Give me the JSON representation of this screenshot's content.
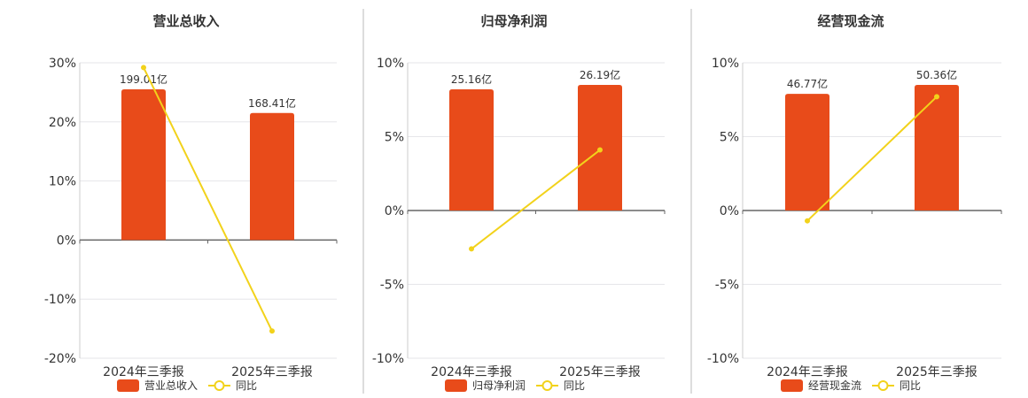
{
  "colors": {
    "bar": "#E84B1A",
    "line": "#F2D21B",
    "grid": "#E6E6EA",
    "axis": "#666666",
    "divider": "#BBBBBB"
  },
  "chart_data": [
    {
      "type": "bar",
      "title": "营业总收入",
      "categories": [
        "2024年三季报",
        "2025年三季报"
      ],
      "series": [
        {
          "name": "营业总收入",
          "type": "bar",
          "value_labels": [
            "199.01亿",
            "168.41亿"
          ],
          "values": [
            25.5,
            21.5
          ]
        },
        {
          "name": "同比",
          "type": "line",
          "values": [
            29.2,
            -15.4
          ]
        }
      ],
      "yticks": [
        "30%",
        "20%",
        "10%",
        "0%",
        "-10%",
        "-20%"
      ],
      "ylim": [
        -20,
        30
      ],
      "grid": true,
      "legend": "bottom"
    },
    {
      "type": "bar",
      "title": "归母净利润",
      "categories": [
        "2024年三季报",
        "2025年三季报"
      ],
      "series": [
        {
          "name": "归母净利润",
          "type": "bar",
          "value_labels": [
            "25.16亿",
            "26.19亿"
          ],
          "values": [
            8.2,
            8.5
          ]
        },
        {
          "name": "同比",
          "type": "line",
          "values": [
            -2.6,
            4.1
          ]
        }
      ],
      "yticks": [
        "10%",
        "5%",
        "0%",
        "-5%",
        "-10%"
      ],
      "ylim": [
        -10,
        10
      ],
      "grid": true,
      "legend": "bottom"
    },
    {
      "type": "bar",
      "title": "经营现金流",
      "categories": [
        "2024年三季报",
        "2025年三季报"
      ],
      "series": [
        {
          "name": "经营现金流",
          "type": "bar",
          "value_labels": [
            "46.77亿",
            "50.36亿"
          ],
          "values": [
            7.9,
            8.5
          ]
        },
        {
          "name": "同比",
          "type": "line",
          "values": [
            -0.7,
            7.7
          ]
        }
      ],
      "yticks": [
        "10%",
        "5%",
        "0%",
        "-5%",
        "-10%"
      ],
      "ylim": [
        -10,
        10
      ],
      "grid": true,
      "legend": "bottom"
    }
  ]
}
